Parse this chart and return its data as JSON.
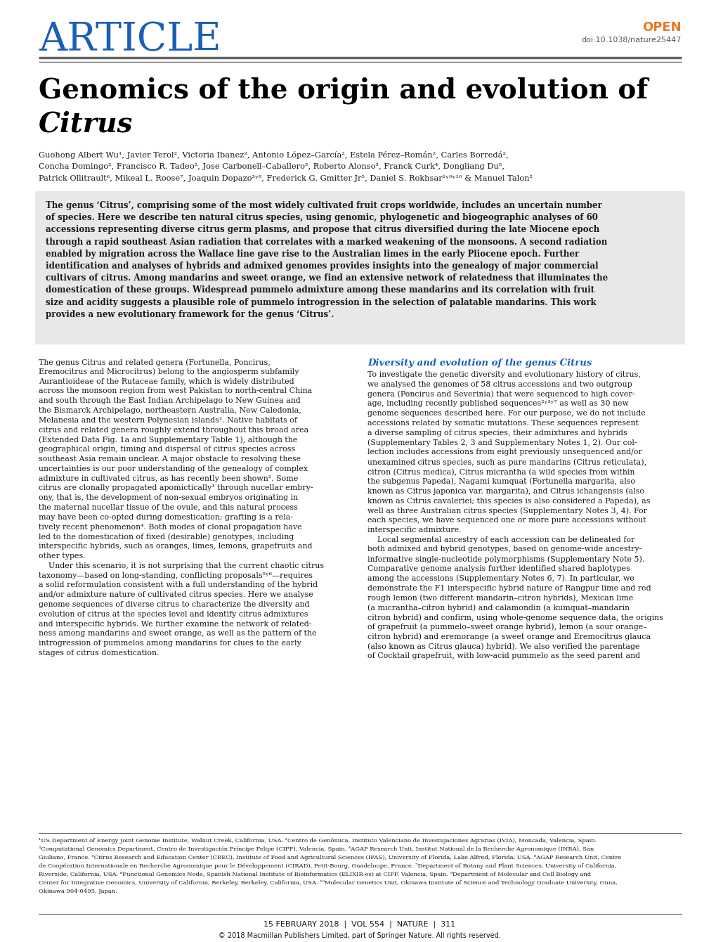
{
  "article_label": "ARTICLE",
  "article_color": "#1a5eb8",
  "open_label": "OPEN",
  "open_color": "#e87722",
  "doi_text": "doi:10.1038/nature25447",
  "doi_color": "#555555",
  "title_line1": "Genomics of the origin and evolution of",
  "title_line2_italic": "Citrus",
  "title_color": "#000000",
  "author_line1": "Guohong Albert Wu¹, Javier Terol², Victoria Ibanez², Antonio López–García², Estela Pérez–Román², Carles Borredá²,",
  "author_line2": "Concha Domingo², Francisco R. Tadeo², Jose Carbonell–Caballero³, Roberto Alonso³, Franck Curk⁴, Dongliang Du⁵,",
  "author_line3": "Patrick Ollitrault⁶, Mikeal L. Roose⁷, Joaquin Dopazo³ʸ⁸, Frederick G. Gmitter Jr⁵, Daniel S. Rokhsar¹ʸ⁹ʸ¹⁰ & Manuel Talon²",
  "abstract_bg": "#e8e8e8",
  "abstract_line1": "The genus ‘Citrus’, comprising some of the most widely cultivated fruit crops worldwide, includes an uncertain number",
  "abstract_lines": [
    "The genus ‘Citrus’, comprising some of the most widely cultivated fruit crops worldwide, includes an uncertain number",
    "of species. Here we describe ten natural citrus species, using genomic, phylogenetic and biogeographic analyses of 60",
    "accessions representing diverse citrus germ plasms, and propose that citrus diversified during the late Miocene epoch",
    "through a rapid southeast Asian radiation that correlates with a marked weakening of the monsoons. A second radiation",
    "enabled by migration across the Wallace line gave rise to the Australian limes in the early Pliocene epoch. Further",
    "identification and analyses of hybrids and admixed genomes provides insights into the genealogy of major commercial",
    "cultivars of citrus. Among mandarins and sweet orange, we find an extensive network of relatedness that illuminates the",
    "domestication of these groups. Widespread pummelo admixture among these mandarins and its correlation with fruit",
    "size and acidity suggests a plausible role of pummelo introgression in the selection of palatable mandarins. This work",
    "provides a new evolutionary framework for the genus ‘Citrus’."
  ],
  "left_col_lines": [
    "The genus Citrus and related genera (Fortunella, Poncirus,",
    "Eremocitrus and Microcitrus) belong to the angiosperm subfamily",
    "Aurantioideae of the Rutaceae family, which is widely distributed",
    "across the monsoon region from west Pakistan to north-central China",
    "and south through the East Indian Archipelago to New Guinea and",
    "the Bismarck Archipelago, northeastern Australia, New Caledonia,",
    "Melanesia and the western Polynesian islands¹. Native habitats of",
    "citrus and related genera roughly extend throughout this broad area",
    "(Extended Data Fig. 1a and Supplementary Table 1), although the",
    "geographical origin, timing and dispersal of citrus species across",
    "southeast Asia remain unclear. A major obstacle to resolving these",
    "uncertainties is our poor understanding of the genealogy of complex",
    "admixture in cultivated citrus, as has recently been shown². Some",
    "citrus are clonally propagated apomictically³ through nucellar embry-",
    "ony, that is, the development of non-sexual embryos originating in",
    "the maternal nucellar tissue of the ovule, and this natural process",
    "may have been co-opted during domestication; grafting is a rela-",
    "tively recent phenomenon⁴. Both modes of clonal propagation have",
    "led to the domestication of fixed (desirable) genotypes, including",
    "interspecific hybrids, such as oranges, limes, lemons, grapefruits and",
    "other types.",
    "    Under this scenario, it is not surprising that the current chaotic citrus",
    "taxonomy—based on long-standing, conflicting proposals⁵ʸ⁶—requires",
    "a solid reformulation consistent with a full understanding of the hybrid",
    "and/or admixture nature of cultivated citrus species. Here we analyse",
    "genome sequences of diverse citrus to characterize the diversity and",
    "evolution of citrus at the species level and identify citrus admixtures",
    "and interspecific hybrids. We further examine the network of related-",
    "ness among mandarins and sweet orange, as well as the pattern of the",
    "introgression of pummelos among mandarins for clues to the early",
    "stages of citrus domestication."
  ],
  "right_col_heading": "Diversity and evolution of the genus Citrus",
  "right_col_heading_color": "#1a5eb8",
  "right_col_lines": [
    "To investigate the genetic diversity and evolutionary history of citrus,",
    "we analysed the genomes of 58 citrus accessions and two outgroup",
    "genera (Poncirus and Severinia) that were sequenced to high cover-",
    "age, including recently published sequences²ʸ³ʸ⁷ as well as 30 new",
    "genome sequences described here. For our purpose, we do not include",
    "accessions related by somatic mutations. These sequences represent",
    "a diverse sampling of citrus species, their admixtures and hybrids",
    "(Supplementary Tables 2, 3 and Supplementary Notes 1, 2). Our col-",
    "lection includes accessions from eight previously unsequenced and/or",
    "unexamined citrus species, such as pure mandarins (Citrus reticulata),",
    "citron (Citrus medica), Citrus micrantha (a wild species from within",
    "the subgenus Papeda), Nagami kumquat (Fortunella margarita, also",
    "known as Citrus japonica var. margarita), and Citrus ichangensis (also",
    "known as Citrus cavaleriei; this species is also considered a Papeda), as",
    "well as three Australian citrus species (Supplementary Notes 3, 4). For",
    "each species, we have sequenced one or more pure accessions without",
    "interspecific admixture.",
    "    Local segmental ancestry of each accession can be delineated for",
    "both admixed and hybrid genotypes, based on genome-wide ancestry-",
    "informative single-nucleotide polymorphisms (Supplementary Note 5).",
    "Comparative genome analysis further identified shared haplotypes",
    "among the accessions (Supplementary Notes 6, 7). In particular, we",
    "demonstrate the F1 interspecific hybrid nature of Rangpur lime and red",
    "rough lemon (two different mandarin–citron hybrids), Mexican lime",
    "(a micrantha–citron hybrid) and calamondin (a kumquat–mandarin",
    "citron hybrid) and confirm, using whole-genome sequence data, the origins",
    "of grapefruit (a pummelo–sweet orange hybrid), lemon (a sour orange–",
    "citron hybrid) and eremorange (a sweet orange and Eremocitrus glauca",
    "(also known as Citrus glauca) hybrid). We also verified the parentage",
    "of Cocktail grapefruit, with low-acid pummelo as the seed parent and"
  ],
  "footnote_lines": [
    "¹US Department of Energy Joint Genome Institute, Walnut Creek, California, USA. ²Centro de Genómica, Instituto Valenciano de Investigaciones Agrarias (IVIA), Moncada, Valencia, Spain.",
    "³Computational Genomics Department, Centro de Investigación Príncipe Felipe (CIPF), Valencia, Spain. ⁴AGAP Research Unit, Institut National de la Recherche Agronomique (INRA), San",
    "Giuliano, France. ⁵Citrus Research and Education Center (CREC), Institute of Food and Agricultural Sciences (IFAS), University of Florida, Lake Alfred, Florida, USA. ⁶AGAP Research Unit, Centre",
    "de Coopération Internationale en Recherche Agronomique pour le Développement (CIRAD), Petit-Bourg, Guadeloupe, France. ⁷Department of Botany and Plant Sciences, University of California,",
    "Riverside, California, USA. ⁸Functional Genomics Node, Spanish National Institute of Bioinformatics (ELIXIR-es) at CIPF, Valencia, Spain. ⁹Department of Molecular and Cell Biology and",
    "Center for Integrative Genomics, University of California, Berkeley, Berkeley, California, USA. ¹⁰Molecular Genetics Unit, Okinawa Institute of Science and Technology Graduate University, Onna,",
    "Okinawa 904-0495, Japan."
  ],
  "bottom_bar_text": "15 FEBRUARY 2018  |  VOL 554  |  NATURE  |  311",
  "copyright_text": "© 2018 Macmillan Publishers Limited, part of Springer Nature. All rights reserved.",
  "page_bg": "#ffffff",
  "text_color": "#1a1a1a",
  "body_text_color": "#1a1a1a",
  "line_color": "#666666"
}
